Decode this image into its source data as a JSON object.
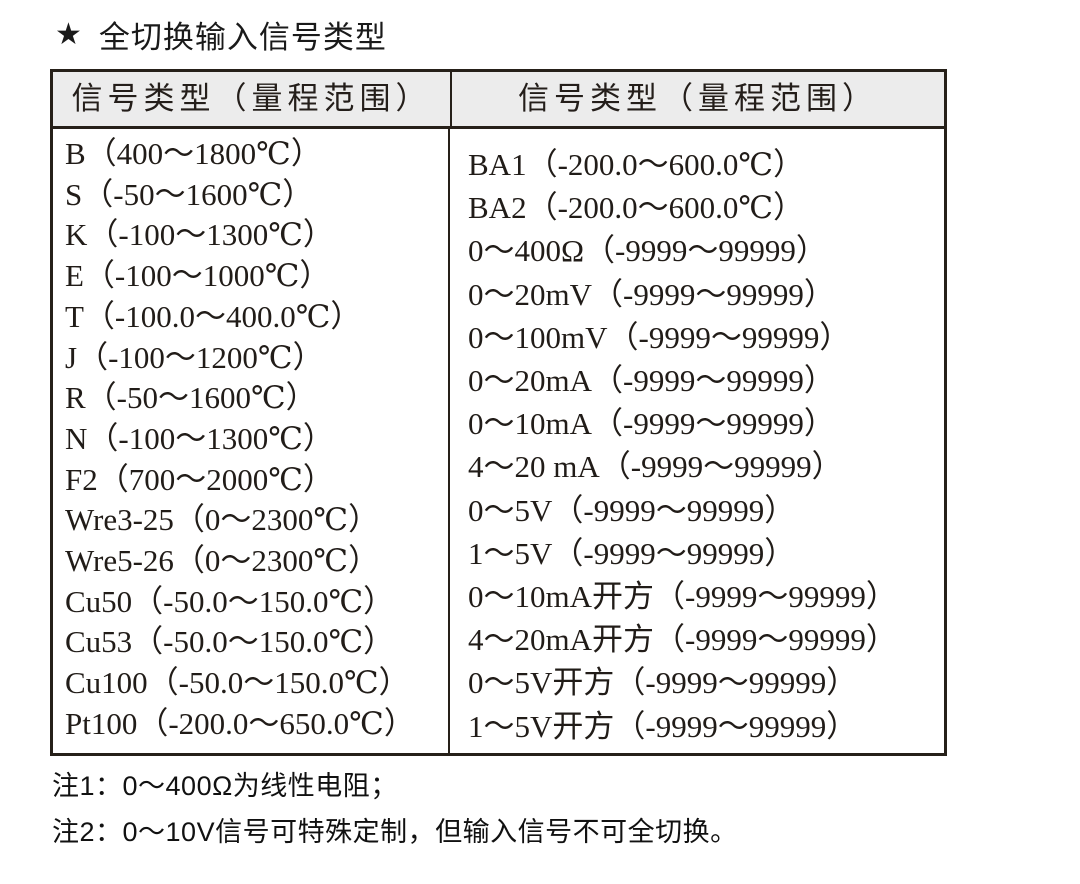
{
  "title": {
    "star": "★",
    "text": "全切换输入信号类型"
  },
  "table": {
    "header_left": "信号类型（量程范围）",
    "header_right": "信号类型（量程范围）",
    "left_rows": [
      "B（400～1800℃）",
      "S（-50～1600℃）",
      "K（-100～1300℃）",
      "E（-100～1000℃）",
      "T（-100.0～400.0℃）",
      "J（-100～1200℃）",
      "R（-50～1600℃）",
      "N（-100～1300℃）",
      "F2（700～2000℃）",
      "Wre3-25（0～2300℃）",
      "Wre5-26（0～2300℃）",
      "Cu50（-50.0～150.0℃）",
      "Cu53（-50.0～150.0℃）",
      "Cu100（-50.0～150.0℃）",
      "Pt100（-200.0～650.0℃）"
    ],
    "right_rows": [
      "BA1（-200.0～600.0℃）",
      "BA2（-200.0～600.0℃）",
      "0～400Ω（-9999～99999）",
      "0～20mV（-9999～99999）",
      "0～100mV（-9999～99999）",
      "0～20mA（-9999～99999）",
      "0～10mA（-9999～99999）",
      "4～20 mA（-9999～99999）",
      "0～5V（-9999～99999）",
      "1～5V（-9999～99999）",
      "0～10mA开方（-9999～99999）",
      "4～20mA开方（-9999～99999）",
      "0～5V开方（-9999～99999）",
      "1～5V开方（-9999～99999）"
    ]
  },
  "notes": [
    "注1：0～400Ω为线性电阻；",
    "注2：0～10V信号可特殊定制，但输入信号不可全切换。"
  ],
  "colors": {
    "border": "#262019",
    "header_bg": "#ececec",
    "text": "#211c18"
  }
}
